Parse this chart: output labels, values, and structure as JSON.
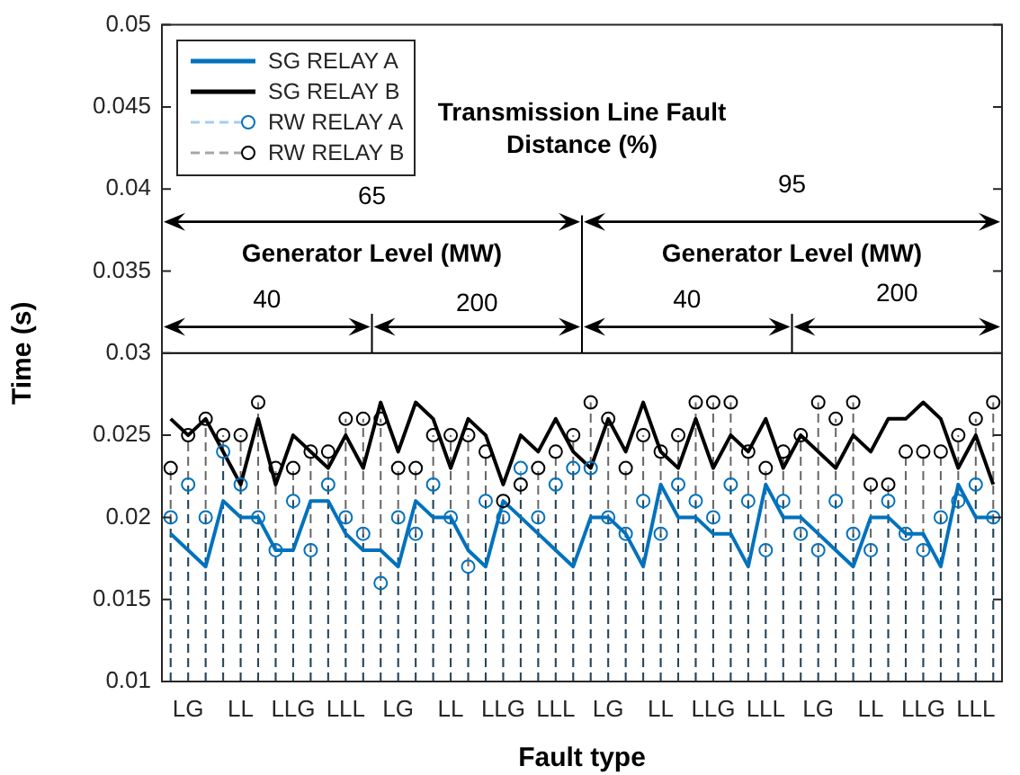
{
  "chart_data": {
    "type": "line",
    "xlabel": "Fault type",
    "ylabel": "Time (s)",
    "categories": [
      null,
      "LG",
      null,
      null,
      "LL",
      null,
      null,
      "LLG",
      null,
      null,
      "LLL",
      null,
      null,
      "LG",
      null,
      null,
      "LL",
      null,
      null,
      "LLG",
      null,
      null,
      "LLL",
      null,
      null,
      "LG",
      null,
      null,
      "LL",
      null,
      null,
      "LLG",
      null,
      null,
      "LLL",
      null,
      null,
      "LG",
      null,
      null,
      "LL",
      null,
      null,
      "LLG",
      null,
      null,
      "LLL",
      null
    ],
    "series": [
      {
        "name": "SG RELAY A",
        "type": "line",
        "color": "#0072bd",
        "marker": "none",
        "line_style": "solid",
        "values": [
          0.019,
          0.018,
          0.017,
          0.021,
          0.02,
          0.02,
          0.018,
          0.018,
          0.021,
          0.021,
          0.019,
          0.018,
          0.018,
          0.017,
          0.021,
          0.02,
          0.02,
          0.018,
          0.017,
          0.021,
          0.02,
          0.019,
          0.018,
          0.017,
          0.02,
          0.02,
          0.019,
          0.017,
          0.022,
          0.02,
          0.02,
          0.019,
          0.019,
          0.017,
          0.022,
          0.02,
          0.02,
          0.019,
          0.018,
          0.017,
          0.02,
          0.02,
          0.019,
          0.019,
          0.017,
          0.022,
          0.02,
          0.02
        ]
      },
      {
        "name": "SG RELAY B",
        "type": "line",
        "color": "#000000",
        "marker": "none",
        "line_style": "solid",
        "values": [
          0.026,
          0.025,
          0.026,
          0.024,
          0.022,
          0.026,
          0.022,
          0.025,
          0.024,
          0.023,
          0.025,
          0.023,
          0.027,
          0.024,
          0.027,
          0.026,
          0.023,
          0.026,
          0.025,
          0.022,
          0.025,
          0.024,
          0.026,
          0.024,
          0.023,
          0.026,
          0.024,
          0.027,
          0.024,
          0.023,
          0.026,
          0.023,
          0.025,
          0.024,
          0.026,
          0.023,
          0.025,
          0.024,
          0.023,
          0.025,
          0.024,
          0.026,
          0.026,
          0.027,
          0.026,
          0.023,
          0.025,
          0.022
        ]
      },
      {
        "name": "RW RELAY A",
        "type": "lollipop",
        "color": "#0072bd",
        "marker": "circle",
        "line_style": "dashed",
        "values": [
          0.02,
          0.022,
          0.02,
          0.024,
          0.022,
          0.02,
          0.018,
          0.021,
          0.018,
          0.022,
          0.02,
          0.019,
          0.016,
          0.02,
          0.019,
          0.022,
          0.02,
          0.017,
          0.021,
          0.02,
          0.023,
          0.02,
          0.022,
          0.023,
          0.023,
          0.02,
          0.019,
          0.021,
          0.019,
          0.022,
          0.021,
          0.02,
          0.022,
          0.021,
          0.018,
          0.021,
          0.019,
          0.018,
          0.021,
          0.019,
          0.018,
          0.021,
          0.019,
          0.018,
          0.02,
          0.021,
          0.022,
          0.02
        ]
      },
      {
        "name": "RW RELAY B",
        "type": "lollipop",
        "color": "#000000",
        "marker": "circle",
        "line_style": "dashed",
        "values": [
          0.023,
          0.025,
          0.026,
          0.025,
          0.025,
          0.027,
          0.023,
          0.023,
          0.024,
          0.024,
          0.026,
          0.026,
          0.026,
          0.023,
          0.023,
          0.025,
          0.025,
          0.025,
          0.024,
          0.021,
          0.022,
          0.023,
          0.024,
          0.025,
          0.027,
          0.026,
          0.023,
          0.025,
          0.024,
          0.025,
          0.027,
          0.027,
          0.027,
          0.024,
          0.023,
          0.024,
          0.025,
          0.027,
          0.026,
          0.027,
          0.022,
          0.022,
          0.024,
          0.024,
          0.024,
          0.025,
          0.026,
          0.027
        ]
      }
    ],
    "ylim": [
      0.01,
      0.05
    ],
    "yticks": [
      0.01,
      0.015,
      0.02,
      0.025,
      0.03,
      0.035,
      0.04,
      0.045,
      0.05
    ],
    "ref_lines": [
      {
        "axis": "y",
        "value": 0.03,
        "color": "#000000"
      }
    ],
    "grid": false,
    "legend": "top left",
    "annotations": [
      "Transmission Line Fault Distance (%)",
      "65",
      "95",
      "Generator Level (MW)",
      "40",
      "200",
      "Generator Level (MW)",
      "40",
      "200"
    ]
  }
}
